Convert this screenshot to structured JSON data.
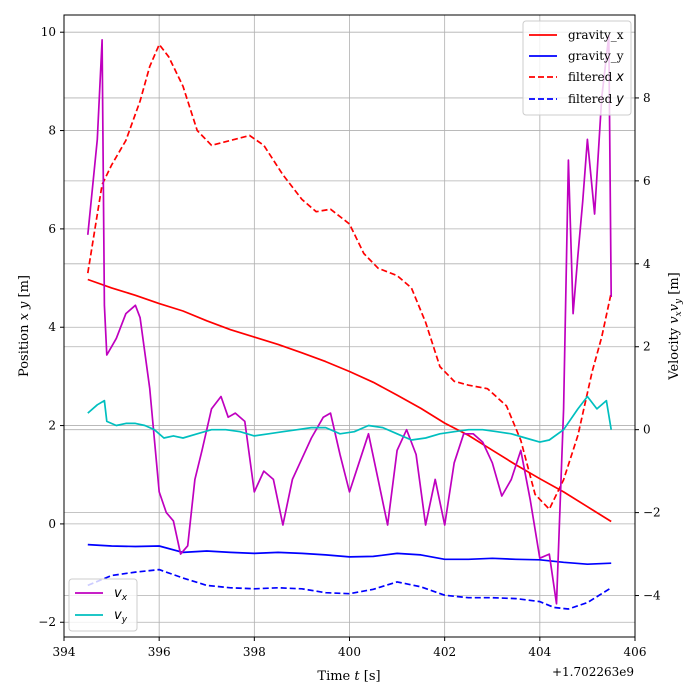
{
  "chart_data": {
    "type": "line",
    "xlabel": "Time $t$ [s]",
    "xlabel_parts": {
      "a": "Time ",
      "b": "t",
      "c": " [s]"
    },
    "x_offset_label": "+1.702263e9",
    "xlim": [
      394.0,
      406.0
    ],
    "xticks": [
      394,
      396,
      398,
      400,
      402,
      404,
      406
    ],
    "left_axis": {
      "label_parts": {
        "a": "Position ",
        "b": "x y",
        "c": " [m]"
      },
      "ylim": [
        -2.3,
        10.35
      ],
      "ticks": [
        -2,
        0,
        2,
        4,
        6,
        8,
        10
      ]
    },
    "right_axis": {
      "label_parts": {
        "a": "Velocity ",
        "b": "v",
        "sx": "x",
        "c": "v",
        "sy": "y",
        "d": " [m]"
      },
      "ylim": [
        -5.0,
        10.0
      ],
      "ticks": [
        -4,
        -2,
        0,
        2,
        4,
        6,
        8
      ]
    },
    "grid": true,
    "legend_top": {
      "placement": "top-right",
      "entries": [
        {
          "label": "gravity_x",
          "math": "",
          "color": "#ff0000",
          "dash": "solid"
        },
        {
          "label": "gravity_y",
          "math": "",
          "color": "#0000ff",
          "dash": "solid"
        },
        {
          "label": "filtered ",
          "math": "x",
          "color": "#ff0000",
          "dash": "dashed"
        },
        {
          "label": "filtered ",
          "math": "y",
          "color": "#0000ff",
          "dash": "dashed"
        }
      ]
    },
    "legend_bottom": {
      "placement": "lower-left",
      "entries": [
        {
          "label": "v",
          "sub": "x",
          "color": "#bf00bf"
        },
        {
          "label": "v",
          "sub": "y",
          "color": "#00bfbf"
        }
      ]
    },
    "series_left": [
      {
        "name": "gravity_x",
        "color": "#ff0000",
        "dash": "solid",
        "x": [
          394.5,
          395.0,
          395.5,
          396.0,
          396.5,
          397.0,
          397.5,
          398.0,
          398.5,
          399.0,
          399.5,
          400.0,
          400.5,
          401.0,
          401.5,
          402.0,
          402.5,
          403.0,
          403.5,
          404.0,
          404.5,
          405.0,
          405.5
        ],
        "y": [
          4.97,
          4.8,
          4.65,
          4.48,
          4.33,
          4.13,
          3.95,
          3.8,
          3.65,
          3.48,
          3.3,
          3.1,
          2.88,
          2.62,
          2.35,
          2.05,
          1.8,
          1.5,
          1.2,
          0.92,
          0.65,
          0.35,
          0.05
        ]
      },
      {
        "name": "gravity_y",
        "color": "#0000ff",
        "dash": "solid",
        "x": [
          394.5,
          395.0,
          395.5,
          396.0,
          396.5,
          397.0,
          397.5,
          398.0,
          398.5,
          399.0,
          399.5,
          400.0,
          400.5,
          401.0,
          401.5,
          402.0,
          402.5,
          403.0,
          403.5,
          404.0,
          404.5,
          405.0,
          405.5
        ],
        "y": [
          -0.42,
          -0.45,
          -0.46,
          -0.45,
          -0.58,
          -0.55,
          -0.58,
          -0.6,
          -0.58,
          -0.6,
          -0.63,
          -0.67,
          -0.66,
          -0.6,
          -0.63,
          -0.72,
          -0.72,
          -0.7,
          -0.72,
          -0.73,
          -0.78,
          -0.82,
          -0.8
        ]
      },
      {
        "name": "filtered x",
        "color": "#ff0000",
        "dash": "dashed",
        "x": [
          394.5,
          394.8,
          395.0,
          395.3,
          395.6,
          395.8,
          396.0,
          396.2,
          396.5,
          396.8,
          397.1,
          397.5,
          397.9,
          398.2,
          398.6,
          399.0,
          399.3,
          399.6,
          400.0,
          400.3,
          400.6,
          401.0,
          401.3,
          401.6,
          401.9,
          402.2,
          402.5,
          402.9,
          403.3,
          403.6,
          403.9,
          404.2,
          404.5,
          404.8,
          405.1,
          405.3,
          405.5
        ],
        "y": [
          5.1,
          6.9,
          7.3,
          7.8,
          8.6,
          9.3,
          9.75,
          9.5,
          8.9,
          8.0,
          7.7,
          7.8,
          7.9,
          7.7,
          7.1,
          6.6,
          6.35,
          6.4,
          6.1,
          5.5,
          5.2,
          5.05,
          4.8,
          4.1,
          3.2,
          2.9,
          2.82,
          2.75,
          2.4,
          1.7,
          0.6,
          0.3,
          0.9,
          1.8,
          3.1,
          3.8,
          4.7
        ]
      },
      {
        "name": "filtered y",
        "color": "#0000ff",
        "dash": "dashed",
        "x": [
          394.5,
          395.0,
          395.5,
          396.0,
          396.5,
          397.0,
          397.5,
          398.0,
          398.5,
          399.0,
          399.5,
          400.0,
          400.5,
          401.0,
          401.5,
          402.0,
          402.5,
          403.0,
          403.5,
          404.0,
          404.3,
          404.6,
          405.0,
          405.5
        ],
        "y": [
          -1.25,
          -1.05,
          -0.98,
          -0.93,
          -1.1,
          -1.25,
          -1.3,
          -1.32,
          -1.3,
          -1.32,
          -1.4,
          -1.42,
          -1.33,
          -1.18,
          -1.28,
          -1.45,
          -1.5,
          -1.5,
          -1.52,
          -1.58,
          -1.7,
          -1.73,
          -1.6,
          -1.3
        ]
      }
    ],
    "series_right": [
      {
        "name": "v_x",
        "color": "#bf00bf",
        "dash": "solid",
        "x": [
          394.5,
          394.7,
          394.8,
          394.85,
          394.9,
          395.1,
          395.3,
          395.5,
          395.6,
          395.8,
          396.0,
          396.15,
          396.3,
          396.45,
          396.6,
          396.75,
          396.9,
          397.1,
          397.3,
          397.45,
          397.6,
          397.8,
          398.0,
          398.2,
          398.4,
          398.6,
          398.8,
          399.0,
          399.2,
          399.45,
          399.6,
          399.8,
          400.0,
          400.2,
          400.4,
          400.6,
          400.8,
          401.0,
          401.2,
          401.4,
          401.6,
          401.8,
          402.0,
          402.2,
          402.4,
          402.6,
          402.8,
          403.0,
          403.2,
          403.4,
          403.6,
          403.8,
          404.0,
          404.2,
          404.35,
          404.5,
          404.6,
          404.7,
          404.8,
          404.9,
          405.0,
          405.15,
          405.3,
          405.45,
          405.5
        ],
        "y": [
          4.7,
          7.0,
          9.4,
          3.0,
          1.8,
          2.2,
          2.8,
          3.0,
          2.7,
          1.0,
          -1.5,
          -2.0,
          -2.2,
          -3.0,
          -2.8,
          -1.2,
          -0.5,
          0.5,
          0.8,
          0.3,
          0.4,
          0.2,
          -1.5,
          -1.0,
          -1.2,
          -2.3,
          -1.2,
          -0.7,
          -0.2,
          0.3,
          0.4,
          -0.6,
          -1.5,
          -0.8,
          -0.1,
          -1.2,
          -2.3,
          -0.5,
          0.0,
          -0.6,
          -2.3,
          -1.2,
          -2.3,
          -0.8,
          -0.1,
          -0.1,
          -0.3,
          -0.8,
          -1.6,
          -1.2,
          -0.5,
          -1.7,
          -3.1,
          -3.0,
          -4.2,
          0.5,
          6.5,
          2.8,
          4.2,
          5.5,
          7.0,
          5.2,
          8.0,
          9.5,
          3.2
        ]
      },
      {
        "name": "v_y",
        "color": "#00bfbf",
        "dash": "solid",
        "x": [
          394.5,
          394.7,
          394.85,
          394.9,
          395.1,
          395.3,
          395.5,
          395.7,
          395.9,
          396.1,
          396.3,
          396.5,
          396.8,
          397.1,
          397.4,
          397.7,
          398.0,
          398.3,
          398.6,
          398.9,
          399.2,
          399.5,
          399.8,
          400.1,
          400.4,
          400.7,
          401.0,
          401.3,
          401.6,
          401.9,
          402.2,
          402.5,
          402.8,
          403.1,
          403.4,
          403.7,
          404.0,
          404.2,
          404.5,
          404.8,
          405.0,
          405.2,
          405.4,
          405.5
        ],
        "y": [
          0.4,
          0.6,
          0.7,
          0.2,
          0.1,
          0.15,
          0.15,
          0.1,
          0.0,
          -0.2,
          -0.15,
          -0.2,
          -0.1,
          0.0,
          0.0,
          -0.05,
          -0.15,
          -0.1,
          -0.05,
          0.0,
          0.05,
          0.05,
          -0.1,
          -0.05,
          0.1,
          0.05,
          -0.1,
          -0.25,
          -0.2,
          -0.1,
          -0.05,
          0.0,
          0.0,
          -0.05,
          -0.1,
          -0.2,
          -0.3,
          -0.25,
          0.0,
          0.5,
          0.8,
          0.5,
          0.7,
          0.0
        ]
      }
    ]
  }
}
